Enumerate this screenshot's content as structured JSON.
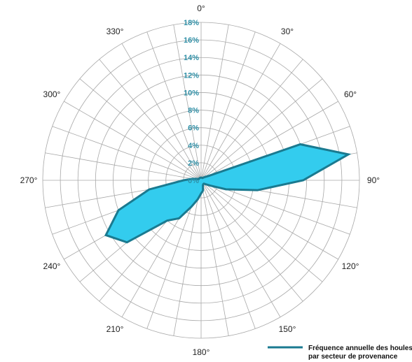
{
  "chart_data": {
    "type": "radar",
    "angle_labels": [
      "0°",
      "30°",
      "60°",
      "90°",
      "120°",
      "150°",
      "180°",
      "210°",
      "240°",
      "270°",
      "300°",
      "330°"
    ],
    "directions_deg": [
      0,
      10,
      20,
      30,
      40,
      50,
      60,
      70,
      80,
      90,
      100,
      110,
      120,
      130,
      140,
      150,
      160,
      170,
      180,
      190,
      200,
      210,
      220,
      230,
      240,
      250,
      260,
      270,
      280,
      290,
      300,
      310,
      320,
      330,
      340,
      350
    ],
    "series": [
      {
        "name": "Fréquence annuelle des houles par secteur de provenance",
        "values": [
          0.3,
          0.3,
          0.3,
          0.3,
          0.4,
          0.6,
          1.0,
          12.0,
          17.0,
          11.6,
          6.5,
          3.0,
          1.2,
          0.7,
          0.5,
          0.5,
          0.6,
          1.2,
          1.5,
          2.2,
          3.2,
          5.0,
          6.0,
          11.0,
          12.5,
          10.0,
          6.0,
          2.0,
          1.0,
          0.5,
          0.3,
          0.3,
          0.3,
          0.3,
          0.3,
          0.3
        ]
      }
    ],
    "rmax": 18,
    "radial_tick_values": [
      0,
      2,
      4,
      6,
      8,
      10,
      12,
      14,
      16,
      18
    ],
    "radial_tick_labels": [
      "0%",
      "2%",
      "4%",
      "6%",
      "8%",
      "10%",
      "12%",
      "14%",
      "16%",
      "18%"
    ],
    "grid": true,
    "legend_position": "bottom-right",
    "colors": {
      "stroke": "#1a7a90",
      "fill": "#33ccee",
      "grid": "#a8a8a8",
      "tick_label": "#2f8fa6"
    }
  },
  "legend": {
    "line1": "Fréquence annuelle des houles",
    "line2": "par secteur de provenance"
  }
}
